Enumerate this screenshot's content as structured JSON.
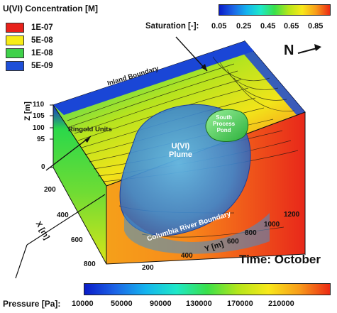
{
  "legend": {
    "title": "U(VI) Concentration [M]",
    "entries": [
      {
        "label": "1E-07",
        "color": "#e8211b"
      },
      {
        "label": "5E-08",
        "color": "#f7ec17"
      },
      {
        "label": "1E-08",
        "color": "#3fd14a"
      },
      {
        "label": "5E-09",
        "color": "#1e4fd8"
      }
    ]
  },
  "saturation": {
    "title": "Saturation [-]:",
    "ticks": [
      "0.05",
      "0.25",
      "0.45",
      "0.65",
      "0.85"
    ]
  },
  "pressure": {
    "title": "Pressure [Pa]:",
    "ticks": [
      "10000",
      "50000",
      "90000",
      "130000",
      "170000",
      "210000"
    ]
  },
  "north": {
    "label": "N"
  },
  "axes": {
    "z_label": "Z [m]",
    "z_ticks": [
      "110",
      "105",
      "100",
      "95",
      "0"
    ],
    "x_label": "X [m]",
    "x_ticks": [
      "200",
      "400",
      "600",
      "800"
    ],
    "y_label": "Y [m]",
    "y_ticks": [
      "200",
      "400",
      "600",
      "800",
      "1000",
      "1200"
    ]
  },
  "annotations": {
    "inland": "Inland Boundary",
    "ringold": "Ringold Units",
    "plume_line1": "U(VI)",
    "plume_line2": "Plume",
    "pond_line1": "South",
    "pond_line2": "Process",
    "pond_line3": "Pond",
    "river": "Columbia River Boundary"
  },
  "time": "Time: October",
  "colormap": [
    "#0a1cc8",
    "#1c64e6",
    "#14b4ee",
    "#1ee8c8",
    "#3ae04a",
    "#b4e61a",
    "#f8e81a",
    "#f89c1a",
    "#ec2a14"
  ]
}
